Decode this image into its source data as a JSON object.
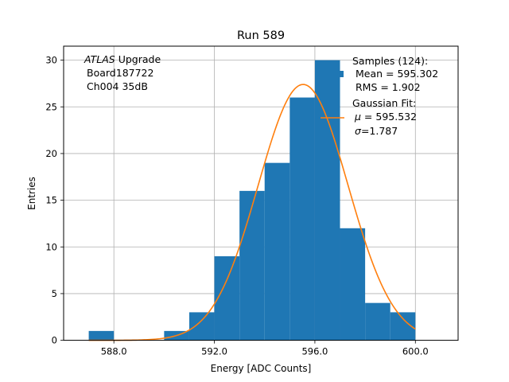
{
  "chart_data": {
    "type": "bar",
    "title": "Run 589",
    "xlabel": "Energy [ADC Counts]",
    "ylabel": "Entries",
    "xlim": [
      586.0,
      601.7
    ],
    "ylim": [
      0,
      31.5
    ],
    "grid": true,
    "x_ticks": [
      588.0,
      592.0,
      596.0,
      600.0
    ],
    "x_tick_labels": [
      "588.0",
      "592.0",
      "596.0",
      "600.0"
    ],
    "y_ticks": [
      0,
      5,
      10,
      15,
      20,
      25,
      30
    ],
    "y_tick_labels": [
      "0",
      "5",
      "10",
      "15",
      "20",
      "25",
      "30"
    ],
    "histogram": {
      "name": "Samples (124):",
      "color": "#1f77b4",
      "bin_edges": [
        587,
        588,
        589,
        590,
        591,
        592,
        593,
        594,
        595,
        596,
        597,
        598,
        599,
        600
      ],
      "counts": [
        1,
        0,
        0,
        1,
        3,
        9,
        16,
        19,
        26,
        30,
        12,
        4,
        3
      ]
    },
    "fit": {
      "name": "Gaussian Fit:",
      "color": "#ff7f0e",
      "type": "gaussian",
      "amplitude": 27.4,
      "mu": 595.532,
      "sigma": 1.787,
      "x_range": [
        587,
        600
      ]
    },
    "annotation": {
      "line1_italic": "ATLAS",
      "line1_rest": "Upgrade",
      "line2": "Board187722",
      "line3": "Ch004 35dB"
    },
    "legend": {
      "placement": "top-right",
      "hist_lines": [
        "Samples (124):",
        " Mean = 595.302",
        " RMS = 1.902"
      ],
      "fit_line1": "Gaussian Fit:",
      "fit_mu_symbol": "μ",
      "fit_mu_rest": " = 595.532",
      "fit_sigma_symbol": "σ",
      "fit_sigma_rest": "=1.787"
    }
  }
}
